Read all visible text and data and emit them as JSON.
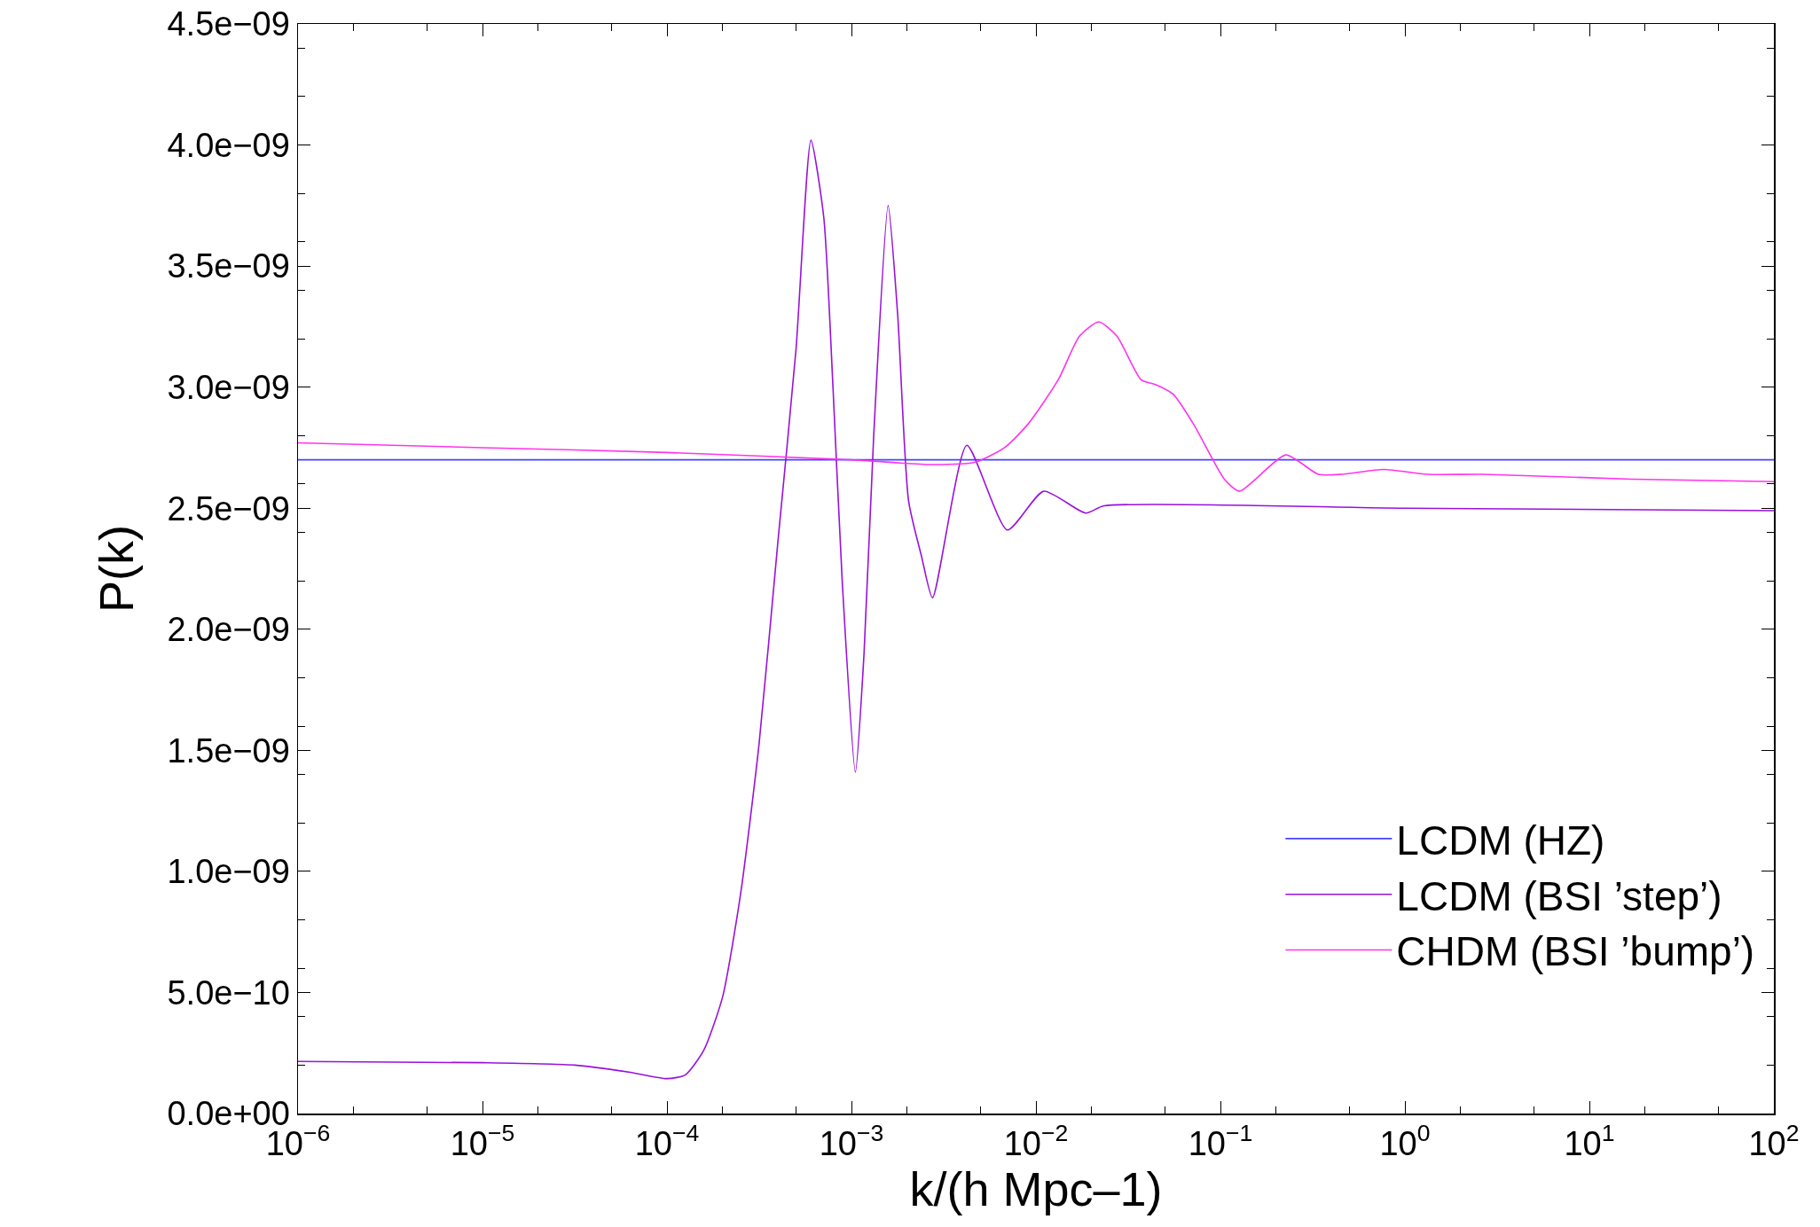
{
  "chart_data": {
    "type": "line",
    "xlabel": "k/(h Mpc–1)",
    "ylabel": "P(k)",
    "log": "x",
    "grid": false,
    "legend": "bottom right",
    "marker": "none",
    "line_style": "solid",
    "xlim": [
      1e-06,
      100
    ],
    "xticks": [
      {
        "value": 1e-06,
        "label": "10$^{−6}$"
      },
      {
        "value": 1e-05,
        "label": "10$^{−5}$"
      },
      {
        "value": 0.0001,
        "label": "10$^{−4}$"
      },
      {
        "value": 0.001,
        "label": "10$^{−3}$"
      },
      {
        "value": 0.01,
        "label": "10$^{−2}$"
      },
      {
        "value": 0.1,
        "label": "10$^{−1}$"
      },
      {
        "value": 1,
        "label": "10$^{0}$"
      },
      {
        "value": 10,
        "label": "10$^{1}$"
      },
      {
        "value": 100,
        "label": "10$^{2}$"
      }
    ],
    "ylim": [
      0,
      4.5e-09
    ],
    "yticks": [
      {
        "value": 0,
        "label": "0.0e+00"
      },
      {
        "value": 5e-10,
        "label": "5.0e−10"
      },
      {
        "value": 1e-09,
        "label": "1.0e−09"
      },
      {
        "value": 1.5e-09,
        "label": "1.5e−09"
      },
      {
        "value": 2e-09,
        "label": "2.0e−09"
      },
      {
        "value": 2.5e-09,
        "label": "2.5e−09"
      },
      {
        "value": 3e-09,
        "label": "3.0e−09"
      },
      {
        "value": 3.5e-09,
        "label": "3.5e−09"
      },
      {
        "value": 4e-09,
        "label": "4.0e−09"
      },
      {
        "value": 4.5e-09,
        "label": "4.5e−09"
      }
    ],
    "series": [
      {
        "name": "LCDM (HZ)",
        "color": "#4444ff",
        "x": [
          1e-06,
          100
        ],
        "values": [
          2.7e-09,
          2.7e-09
        ]
      },
      {
        "name": "LCDM (BSI ’step’)",
        "color": "#9911dd",
        "x": [
          1e-06,
          1e-05,
          3.16e-05,
          6.31e-05,
          0.0001,
          0.000126,
          0.000158,
          0.0002,
          0.000251,
          0.000316,
          0.000398,
          0.000501,
          0.000603,
          0.000708,
          0.000794,
          0.000891,
          0.00105,
          0.00117,
          0.00132,
          0.00158,
          0.00178,
          0.00204,
          0.0024,
          0.00275,
          0.00422,
          0.007,
          0.011,
          0.0186,
          0.0234,
          1,
          100
        ],
        "values": [
          2.15e-10,
          2.1e-10,
          2e-10,
          1.7e-10,
          1.44e-10,
          1.6e-10,
          2.6e-10,
          4.8e-10,
          9.1e-10,
          1.53e-09,
          2.35e-09,
          3.16e-09,
          4.02e-09,
          3.7e-09,
          3e-09,
          2.2e-09,
          1.41e-09,
          1.9e-09,
          2.8e-09,
          3.75e-09,
          3.3e-09,
          2.53e-09,
          2.3e-09,
          2.13e-09,
          2.76e-09,
          2.41e-09,
          2.57e-09,
          2.48e-09,
          2.51e-09,
          2.5e-09,
          2.49e-09
        ]
      },
      {
        "name": "CHDM (BSI ’bump’)",
        "color": "#ff33ee",
        "x": [
          1e-06,
          1e-05,
          0.0001,
          0.001,
          0.00269,
          0.00468,
          0.00676,
          0.00912,
          0.0132,
          0.0172,
          0.0219,
          0.0275,
          0.0372,
          0.0447,
          0.0556,
          0.0724,
          0.105,
          0.127,
          0.226,
          0.339,
          0.457,
          0.767,
          1.32,
          2.63,
          17.0,
          100
        ],
        "values": [
          2.77e-09,
          2.75e-09,
          2.73e-09,
          2.7e-09,
          2.68e-09,
          2.69e-09,
          2.75e-09,
          2.85e-09,
          3.03e-09,
          3.21e-09,
          3.27e-09,
          3.21e-09,
          3.03e-09,
          3.01e-09,
          2.97e-09,
          2.84e-09,
          2.62e-09,
          2.57e-09,
          2.72e-09,
          2.64e-09,
          2.64e-09,
          2.66e-09,
          2.64e-09,
          2.64e-09,
          2.62e-09,
          2.61e-09
        ]
      }
    ]
  }
}
